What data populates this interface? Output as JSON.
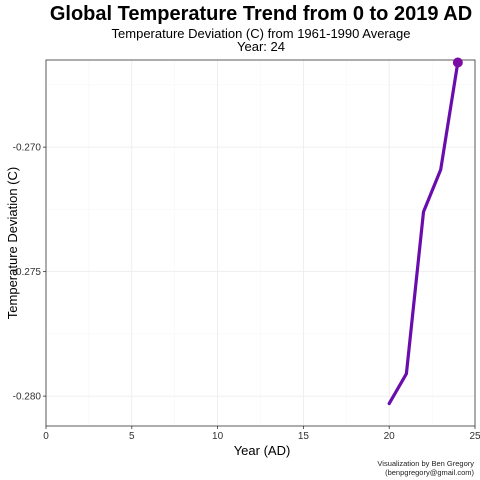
{
  "chart_data": {
    "type": "line",
    "title": "Global Temperature Trend from 0 to 2019 AD",
    "subtitle": "Temperature Deviation (C) from 1961-1990 Average",
    "year_label": "Year:  24",
    "xlabel": "Year (AD)",
    "ylabel": "Temperature Deviation (C)",
    "caption_line1": "Visualization by Ben Gregory",
    "caption_line2": "(benpgregory@gmail.com)",
    "xlim": [
      0,
      25
    ],
    "ylim": [
      -0.2812,
      -0.2665
    ],
    "x_ticks": [
      0,
      5,
      10,
      15,
      20,
      25
    ],
    "y_ticks": [
      -0.28,
      -0.275,
      -0.27
    ],
    "x_tick_labels": [
      "0",
      "5",
      "10",
      "15",
      "20",
      "25"
    ],
    "y_tick_labels": [
      "-0.280",
      "-0.275",
      "-0.270"
    ],
    "grid": true,
    "line_color": "#6a0dad",
    "point_color": "#7b0da5",
    "series": [
      {
        "x": [
          20,
          21,
          22,
          23,
          24
        ],
        "y": [
          -0.2803,
          -0.2791,
          -0.2726,
          -0.2709,
          -0.2666
        ]
      }
    ]
  }
}
